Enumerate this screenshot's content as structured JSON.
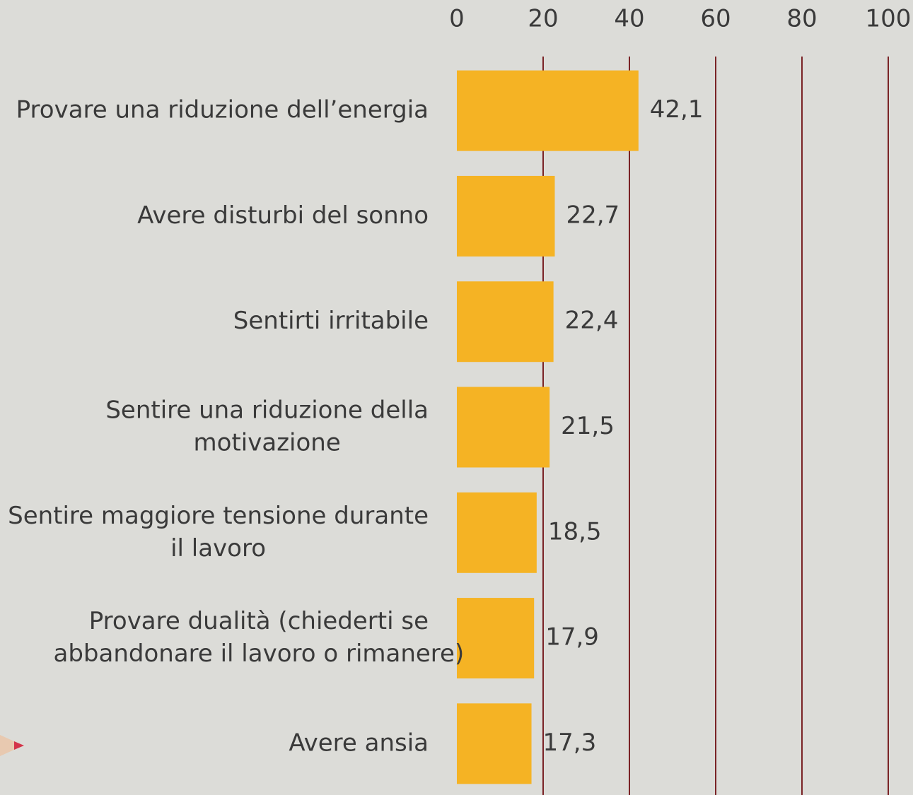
{
  "chart_data": {
    "type": "bar",
    "orientation": "horizontal",
    "categories": [
      "Provare una riduzione dell’energia",
      "Avere disturbi del sonno",
      "Sentirti irritabile",
      "Sentire una riduzione della\nmotivazione",
      "Sentire maggiore tensione durante\nil lavoro",
      "Provare dualità (chiederti se\nabbandonare il lavoro o rimanere)",
      "Avere ansia"
    ],
    "values": [
      42.1,
      22.7,
      22.4,
      21.5,
      18.5,
      17.9,
      17.3
    ],
    "value_labels": [
      "42,1",
      "22,7",
      "22,4",
      "21,5",
      "18,5",
      "17,9",
      "17,3"
    ],
    "color": "#f5b324",
    "xlim": [
      0,
      100
    ],
    "xticks": [
      0,
      20,
      40,
      60,
      80,
      100
    ],
    "grid": true,
    "grid_color": "#7a2326"
  }
}
